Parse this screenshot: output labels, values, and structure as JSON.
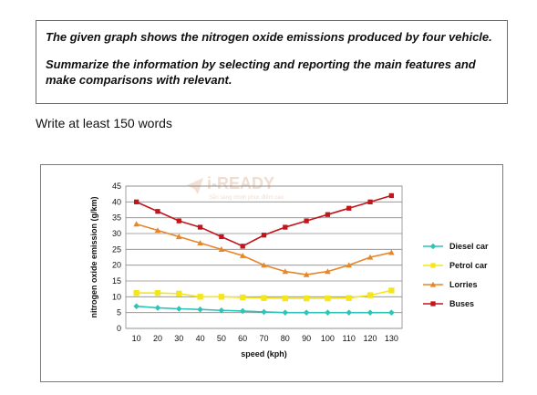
{
  "prompt": {
    "line1": "The given graph shows the nitrogen oxide emissions produced by four vehicle.",
    "line2": "Summarize the information by selecting and reporting the main features and",
    "line3": "make comparisons with relevant."
  },
  "instruction": "Write at least 150 words",
  "watermark": {
    "brand": "i-READY",
    "tagline": "Sẵn sàng chinh phục điểm cao"
  },
  "chart_data": {
    "type": "line",
    "xlabel": "speed (kph)",
    "ylabel": "nitrogen oxide emission (g/km)",
    "ylim": [
      0,
      45
    ],
    "yticks": [
      0,
      5,
      10,
      15,
      20,
      25,
      30,
      35,
      40,
      45
    ],
    "grid": true,
    "legend_position": "right",
    "categories": [
      10,
      20,
      30,
      40,
      50,
      60,
      70,
      80,
      90,
      100,
      110,
      120,
      130
    ],
    "series": [
      {
        "name": "Diesel car",
        "color": "#2ec4b6",
        "marker": "diamond",
        "values": [
          7,
          6.5,
          6.2,
          6,
          5.7,
          5.5,
          5.2,
          5,
          5,
          5,
          5,
          5,
          5
        ]
      },
      {
        "name": "Petrol car",
        "color": "#f5e61b",
        "marker": "square",
        "values": [
          11.2,
          11.2,
          11,
          10,
          10,
          9.8,
          9.6,
          9.5,
          9.5,
          9.5,
          9.6,
          10.5,
          12
        ]
      },
      {
        "name": "Lorries",
        "color": "#e8862a",
        "marker": "triangle",
        "values": [
          33,
          31,
          29,
          27,
          25,
          23,
          20,
          18,
          17,
          18,
          20,
          22.5,
          24
        ]
      },
      {
        "name": "Buses",
        "color": "#c0161c",
        "marker": "square",
        "values": [
          40,
          37,
          34,
          32,
          29,
          26,
          29.5,
          32,
          34,
          36,
          38,
          40,
          42
        ]
      }
    ]
  }
}
